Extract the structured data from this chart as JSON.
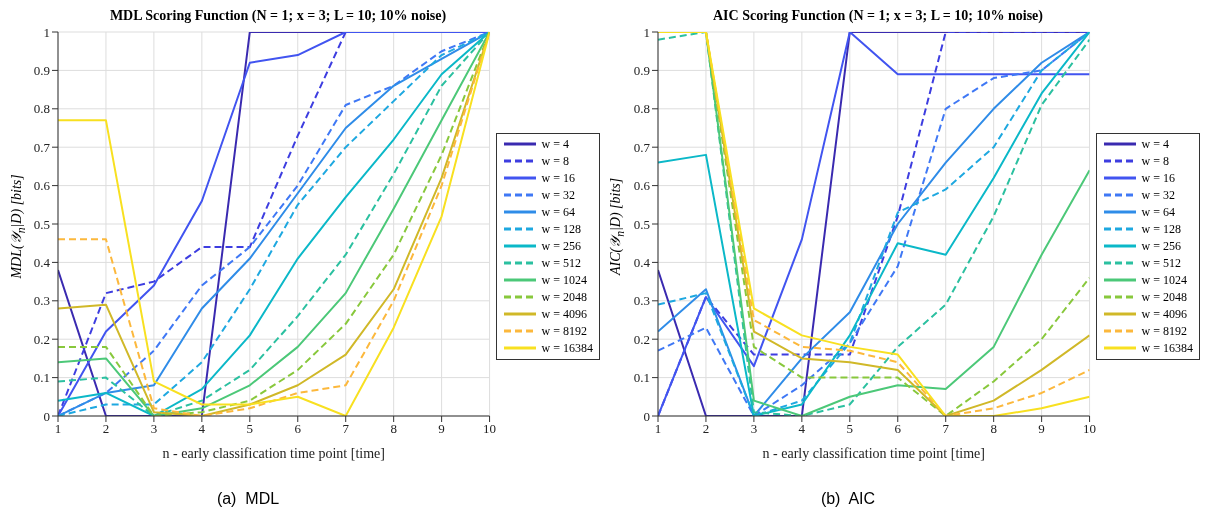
{
  "chart_data": [
    {
      "type": "line",
      "title": "MDL Scoring Function (N = 1; x = 3; L = 10; 10% noise)",
      "xlabel": "n - early classification time point [time]",
      "ylabel": "MDL(𝒴$_{n}$|D) [bits]",
      "x": [
        1,
        2,
        3,
        4,
        5,
        6,
        7,
        8,
        9,
        10
      ],
      "xlim": [
        1,
        10
      ],
      "xticks": [
        1,
        2,
        3,
        4,
        5,
        6,
        7,
        8,
        9,
        10
      ],
      "ylim": [
        0,
        1
      ],
      "yticks": [
        0,
        0.1,
        0.2,
        0.3,
        0.4,
        0.5,
        0.6,
        0.7,
        0.8,
        0.9,
        1
      ],
      "grid": true,
      "legend": "right",
      "annotations": [
        "(a)  MDL"
      ],
      "series": [
        {
          "name": "w = 4",
          "color": "#3a2ab0",
          "line_style": "solid",
          "values": [
            0.38,
            0,
            0,
            0,
            1,
            1,
            1,
            1,
            null,
            null
          ]
        },
        {
          "name": "w = 8",
          "color": "#3d3de0",
          "line_style": "dashed",
          "values": [
            0,
            0.32,
            0.35,
            0.44,
            0.44,
            0.73,
            1,
            1,
            1,
            1
          ]
        },
        {
          "name": "w = 16",
          "color": "#4154f0",
          "line_style": "solid",
          "values": [
            0,
            0.22,
            0.34,
            0.56,
            0.92,
            0.94,
            1,
            1,
            1,
            1
          ]
        },
        {
          "name": "w = 32",
          "color": "#3f78f5",
          "line_style": "dashed",
          "values": [
            0,
            0.06,
            0.17,
            0.34,
            0.44,
            0.6,
            0.81,
            0.86,
            0.95,
            1
          ]
        },
        {
          "name": "w = 64",
          "color": "#2f8ce8",
          "line_style": "solid",
          "values": [
            0,
            0.06,
            0.08,
            0.28,
            0.41,
            0.58,
            0.75,
            0.86,
            0.93,
            1
          ]
        },
        {
          "name": "w = 128",
          "color": "#1ea8e0",
          "line_style": "dashed",
          "values": [
            0,
            0.03,
            0.03,
            0.14,
            0.33,
            0.55,
            0.7,
            0.82,
            0.94,
            1
          ]
        },
        {
          "name": "w = 256",
          "color": "#0bb8c8",
          "line_style": "solid",
          "values": [
            0.04,
            0.06,
            0,
            0.07,
            0.21,
            0.41,
            0.57,
            0.72,
            0.89,
            1
          ]
        },
        {
          "name": "w = 512",
          "color": "#2bc0a0",
          "line_style": "dashed",
          "values": [
            0.09,
            0.1,
            0,
            0.04,
            0.12,
            0.26,
            0.42,
            0.63,
            0.86,
            1
          ]
        },
        {
          "name": "w = 1024",
          "color": "#4cc878",
          "line_style": "solid",
          "values": [
            0.14,
            0.15,
            0,
            0.02,
            0.08,
            0.18,
            0.32,
            0.54,
            0.77,
            1
          ]
        },
        {
          "name": "w = 2048",
          "color": "#88c83c",
          "line_style": "dashed",
          "values": [
            0.18,
            0.18,
            0,
            0.01,
            0.04,
            0.12,
            0.24,
            0.42,
            0.68,
            1
          ]
        },
        {
          "name": "w = 4096",
          "color": "#d0b828",
          "line_style": "solid",
          "values": [
            0.28,
            0.29,
            0.01,
            0,
            0.03,
            0.08,
            0.16,
            0.33,
            0.62,
            1
          ]
        },
        {
          "name": "w = 8192",
          "color": "#fcb83c",
          "line_style": "dashed",
          "values": [
            0.46,
            0.46,
            0.02,
            0,
            0.02,
            0.06,
            0.08,
            0.3,
            0.6,
            1
          ]
        },
        {
          "name": "w = 16384",
          "color": "#f8e020",
          "line_style": "solid",
          "values": [
            0.77,
            0.77,
            0.09,
            0.03,
            0.03,
            0.05,
            0,
            0.23,
            0.52,
            1
          ]
        }
      ]
    },
    {
      "type": "line",
      "title": "AIC Scoring Function (N = 1; x = 3; L = 10; 10% noise)",
      "xlabel": "n - early classification time point [time]",
      "ylabel": "AIC(𝒴$_{n}$|D) [bits]",
      "x": [
        1,
        2,
        3,
        4,
        5,
        6,
        7,
        8,
        9,
        10
      ],
      "xlim": [
        1,
        10
      ],
      "xticks": [
        1,
        2,
        3,
        4,
        5,
        6,
        7,
        8,
        9,
        10
      ],
      "ylim": [
        0,
        1
      ],
      "yticks": [
        0,
        0.1,
        0.2,
        0.3,
        0.4,
        0.5,
        0.6,
        0.7,
        0.8,
        0.9,
        1
      ],
      "grid": true,
      "legend": "right",
      "annotations": [
        "(b)  AIC"
      ],
      "series": [
        {
          "name": "w = 4",
          "color": "#3a2ab0",
          "line_style": "solid",
          "values": [
            0.38,
            0,
            0,
            0,
            1,
            1,
            1,
            1,
            1,
            1
          ]
        },
        {
          "name": "w = 8",
          "color": "#3d3de0",
          "line_style": "dashed",
          "values": [
            0,
            0.31,
            0.16,
            0.16,
            0.16,
            0.52,
            1,
            1,
            1,
            1
          ]
        },
        {
          "name": "w = 16",
          "color": "#4154f0",
          "line_style": "solid",
          "values": [
            0,
            0.31,
            0.13,
            0.46,
            1,
            0.89,
            0.89,
            0.89,
            0.89,
            0.89
          ]
        },
        {
          "name": "w = 32",
          "color": "#3f78f5",
          "line_style": "dashed",
          "values": [
            0.17,
            0.23,
            0,
            0.08,
            0.19,
            0.39,
            0.8,
            0.88,
            0.9,
            1
          ]
        },
        {
          "name": "w = 64",
          "color": "#2f8ce8",
          "line_style": "solid",
          "values": [
            0.22,
            0.33,
            0,
            0.15,
            0.27,
            0.5,
            0.66,
            0.8,
            0.92,
            1
          ]
        },
        {
          "name": "w = 128",
          "color": "#1ea8e0",
          "line_style": "dashed",
          "values": [
            0.29,
            0.32,
            0,
            0.04,
            0.19,
            0.53,
            0.59,
            0.7,
            0.9,
            1
          ]
        },
        {
          "name": "w = 256",
          "color": "#0bb8c8",
          "line_style": "solid",
          "values": [
            0.66,
            0.68,
            0,
            0.03,
            0.21,
            0.45,
            0.42,
            0.62,
            0.84,
            1
          ]
        },
        {
          "name": "w = 512",
          "color": "#2bc0a0",
          "line_style": "dashed",
          "values": [
            0.98,
            1,
            0.01,
            0,
            0.03,
            0.18,
            0.29,
            0.52,
            0.81,
            0.98
          ]
        },
        {
          "name": "w = 1024",
          "color": "#4cc878",
          "line_style": "solid",
          "values": [
            1,
            1,
            0.04,
            0,
            0.05,
            0.08,
            0.07,
            0.18,
            0.42,
            0.64
          ]
        },
        {
          "name": "w = 2048",
          "color": "#88c83c",
          "line_style": "dashed",
          "values": [
            1,
            1,
            0.18,
            0.1,
            0.1,
            0.1,
            0,
            0.09,
            0.2,
            0.36
          ]
        },
        {
          "name": "w = 4096",
          "color": "#d0b828",
          "line_style": "solid",
          "values": [
            1,
            1,
            0.22,
            0.15,
            0.14,
            0.12,
            0,
            0.04,
            0.12,
            0.21
          ]
        },
        {
          "name": "w = 8192",
          "color": "#fcb83c",
          "line_style": "dashed",
          "values": [
            1,
            1,
            0.25,
            0.18,
            0.17,
            0.14,
            0,
            0.02,
            0.06,
            0.12
          ]
        },
        {
          "name": "w = 16384",
          "color": "#f8e020",
          "line_style": "solid",
          "values": [
            1,
            1,
            0.28,
            0.21,
            0.18,
            0.16,
            0,
            0,
            0.02,
            0.05
          ]
        }
      ]
    }
  ]
}
